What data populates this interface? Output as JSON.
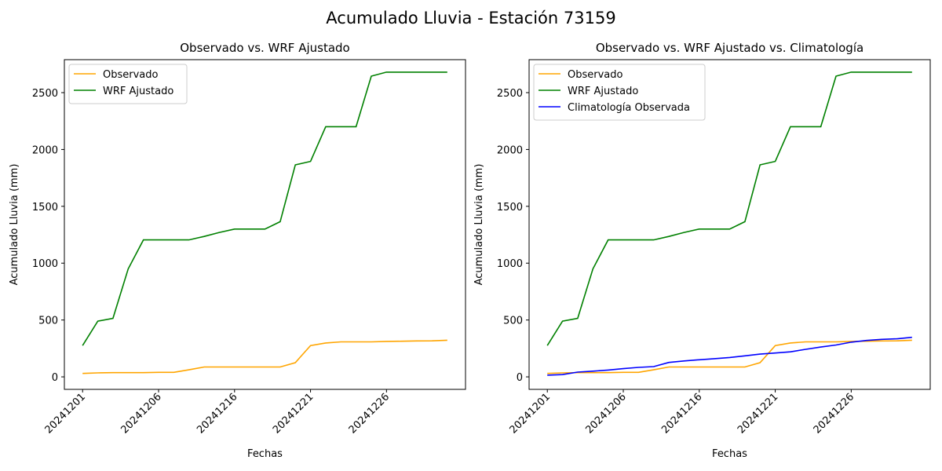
{
  "figure_title": "Acumulado Lluvia - Estación 73159",
  "chart_data": [
    {
      "type": "line",
      "title": "Observado vs. WRF Ajustado",
      "xlabel": "Fechas",
      "ylabel": "Acumulado Lluvia (mm)",
      "x_tick_labels": [
        "20241201",
        "20241206",
        "20241216",
        "20241221",
        "20241226"
      ],
      "y_ticks": [
        0,
        500,
        1000,
        1500,
        2000,
        2500
      ],
      "ylim": [
        -110,
        2790
      ],
      "grid": false,
      "legend_position": "upper-left",
      "x": [
        0,
        1,
        2,
        3,
        4,
        5,
        6,
        7,
        8,
        9,
        10,
        11,
        12,
        13,
        14,
        15,
        16,
        17,
        18,
        19,
        20,
        21,
        22,
        23,
        24
      ],
      "series": [
        {
          "name": "Observado",
          "color": "#ffa500",
          "values": [
            30,
            35,
            37,
            37,
            37,
            40,
            40,
            62,
            87,
            87,
            87,
            87,
            87,
            87,
            125,
            275,
            298,
            308,
            308,
            308,
            312,
            313,
            316,
            317,
            322
          ]
        },
        {
          "name": "WRF Ajustado",
          "color": "#008000",
          "values": [
            275,
            490,
            515,
            950,
            1205,
            1205,
            1205,
            1205,
            1235,
            1270,
            1300,
            1300,
            1300,
            1365,
            1865,
            1895,
            2200,
            2200,
            2200,
            2645,
            2680,
            2680,
            2680,
            2680,
            2680
          ]
        }
      ]
    },
    {
      "type": "line",
      "title": "Observado vs. WRF Ajustado vs. Climatología",
      "xlabel": "Fechas",
      "ylabel": "Acumulado Lluvia (mm)",
      "x_tick_labels": [
        "20241201",
        "20241206",
        "20241216",
        "20241221",
        "20241226"
      ],
      "y_ticks": [
        0,
        500,
        1000,
        1500,
        2000,
        2500
      ],
      "ylim": [
        -110,
        2790
      ],
      "grid": false,
      "legend_position": "upper-left",
      "x": [
        0,
        1,
        2,
        3,
        4,
        5,
        6,
        7,
        8,
        9,
        10,
        11,
        12,
        13,
        14,
        15,
        16,
        17,
        18,
        19,
        20,
        21,
        22,
        23,
        24
      ],
      "series": [
        {
          "name": "Observado",
          "color": "#ffa500",
          "values": [
            30,
            35,
            37,
            37,
            37,
            40,
            40,
            62,
            87,
            87,
            87,
            87,
            87,
            87,
            125,
            275,
            298,
            308,
            308,
            308,
            312,
            313,
            316,
            317,
            322
          ]
        },
        {
          "name": "WRF Ajustado",
          "color": "#008000",
          "values": [
            275,
            490,
            515,
            950,
            1205,
            1205,
            1205,
            1205,
            1235,
            1270,
            1300,
            1300,
            1300,
            1365,
            1865,
            1895,
            2200,
            2200,
            2200,
            2645,
            2680,
            2680,
            2680,
            2680,
            2680
          ]
        },
        {
          "name": "Climatología Observada",
          "color": "#0000ff",
          "values": [
            15,
            20,
            42,
            50,
            60,
            72,
            83,
            90,
            127,
            140,
            150,
            160,
            170,
            185,
            200,
            210,
            220,
            242,
            262,
            280,
            305,
            320,
            330,
            335,
            348
          ]
        }
      ]
    }
  ]
}
